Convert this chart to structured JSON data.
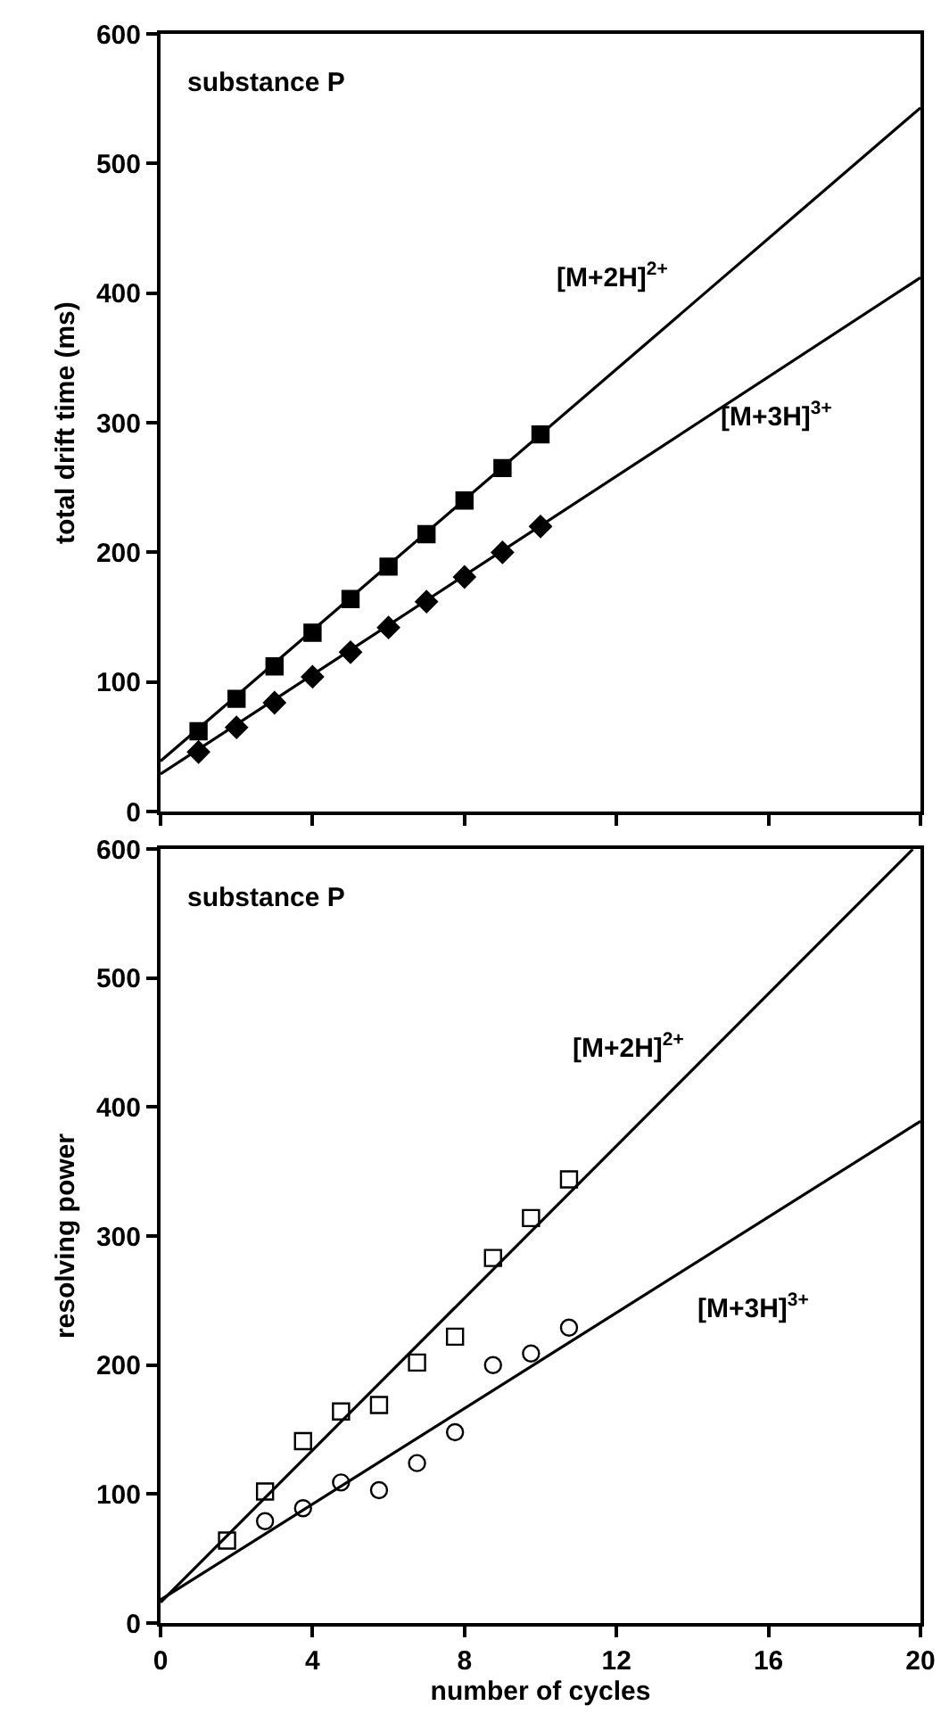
{
  "chart_data": [
    {
      "type": "scatter",
      "ylabel": "total drift time (ms)",
      "xlim": [
        0,
        20
      ],
      "xticks": [
        0,
        4,
        8,
        12,
        16,
        20
      ],
      "ylim": [
        0,
        600
      ],
      "yticks": [
        0,
        100,
        200,
        300,
        400,
        500,
        600
      ],
      "tick_labels": "y",
      "x": [
        1,
        2,
        3,
        4,
        5,
        6,
        7,
        8,
        9,
        10
      ],
      "annotations": [
        "substance P",
        "[M+2H]$^{2+}$",
        "[M+3H]$^{3+}$"
      ],
      "series": [
        {
          "type": "line",
          "color": "#000000",
          "marker": "none",
          "x": [
            0,
            20
          ],
          "values": [
            39,
            543
          ]
        },
        {
          "type": "line",
          "color": "#000000",
          "marker": "none",
          "x": [
            0,
            20
          ],
          "values": [
            29,
            412
          ]
        },
        {
          "color": "#000000",
          "marker": "square",
          "values": [
            62,
            87,
            112,
            138,
            164,
            189,
            214,
            240,
            265,
            291
          ]
        },
        {
          "color": "#000000",
          "marker": "diamond",
          "values": [
            46,
            65,
            84,
            104,
            123,
            142,
            162,
            181,
            200,
            220
          ]
        }
      ]
    },
    {
      "type": "scatter",
      "xlabel": "number of cycles",
      "ylabel": "resolving power",
      "xlim": [
        0,
        20
      ],
      "xticks": [
        0,
        4,
        8,
        12,
        16,
        20
      ],
      "ylim": [
        0,
        600
      ],
      "yticks": [
        0,
        100,
        200,
        300,
        400,
        500,
        600
      ],
      "x": [
        1.75,
        2.75,
        3.75,
        4.75,
        5.75,
        6.75,
        7.75,
        8.75,
        9.75,
        10.75
      ],
      "annotations": [
        "substance P",
        "[M+2H]$^{2+}$",
        "[M+3H]$^{3+}$"
      ],
      "series": [
        {
          "type": "line",
          "color": "#000000",
          "marker": "none",
          "x": [
            0,
            19.8
          ],
          "values": [
            16,
            600
          ]
        },
        {
          "type": "line",
          "color": "#000000",
          "marker": "none",
          "x": [
            0,
            20
          ],
          "values": [
            18,
            389
          ]
        },
        {
          "color": "#000000",
          "marker": "square-open",
          "values": [
            64,
            102,
            141,
            164,
            169,
            202,
            222,
            283,
            314,
            344
          ]
        },
        {
          "color": "#000000",
          "marker": "circle-open",
          "values": [
            null,
            79,
            89,
            109,
            103,
            124,
            148,
            200,
            209,
            229
          ]
        }
      ]
    }
  ]
}
